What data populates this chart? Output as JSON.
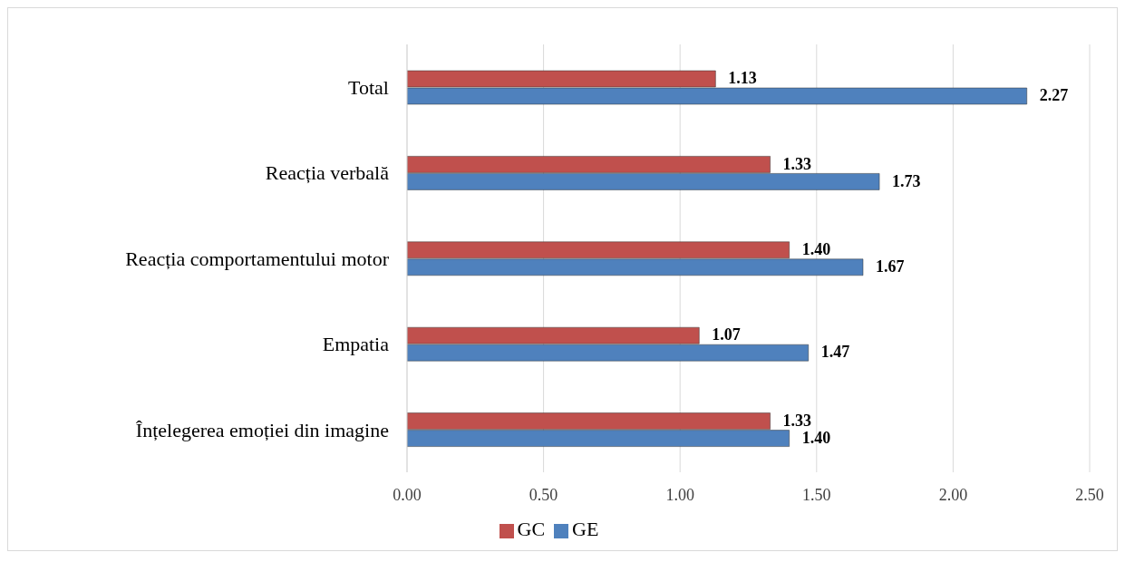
{
  "chart_data": {
    "type": "bar",
    "orientation": "horizontal",
    "categories": [
      "Total",
      "Reacția verbală",
      "Reacția comportamentului motor",
      "Empatia",
      "Înțelegerea emoției din imagine"
    ],
    "series": [
      {
        "name": "GC",
        "color": "#c0504d",
        "values": [
          1.13,
          1.33,
          1.4,
          1.07,
          1.33
        ],
        "value_labels": [
          "1.13",
          "1.33",
          "1.40",
          "1.07",
          "1.33"
        ]
      },
      {
        "name": "GE",
        "color": "#4f81bd",
        "values": [
          2.27,
          1.73,
          1.67,
          1.47,
          1.4
        ],
        "value_labels": [
          "2.27",
          "1.73",
          "1.67",
          "1.47",
          "1.40"
        ]
      }
    ],
    "xlim": [
      0,
      2.5
    ],
    "xticks": [
      {
        "value": 0,
        "label": "0.00"
      },
      {
        "value": 0.5,
        "label": "0.50"
      },
      {
        "value": 1,
        "label": "1.00"
      },
      {
        "value": 1.5,
        "label": "1.50"
      },
      {
        "value": 2,
        "label": "2.00"
      },
      {
        "value": 2.5,
        "label": "2.50"
      }
    ],
    "grid": "x",
    "legend": "bottom"
  }
}
